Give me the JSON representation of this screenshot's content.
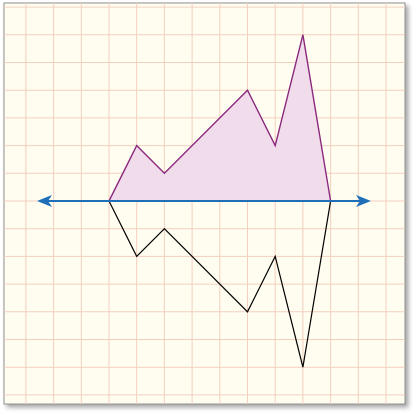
{
  "colors": {
    "paper": "#fffdf0",
    "grid": "#f3cfbf",
    "paper_border": "#8f8f8f",
    "shape_fill": "#f0dcea",
    "shape_stroke": "#8b2a7e",
    "reflection_stroke": "#000000",
    "axis_line": "#1f6fb8"
  },
  "diagram": {
    "description_type": "reflection across a horizontal line on grid paper",
    "grid_cell_units": 1,
    "original_shape_vertices": [
      [
        0,
        0
      ],
      [
        1,
        2
      ],
      [
        2,
        1
      ],
      [
        5,
        4
      ],
      [
        6,
        2
      ],
      [
        7,
        6
      ],
      [
        8,
        0
      ]
    ],
    "reflected_shape_vertices": [
      [
        0,
        0
      ],
      [
        1,
        -2
      ],
      [
        2,
        -1
      ],
      [
        5,
        -4
      ],
      [
        6,
        -2
      ],
      [
        7,
        -6
      ],
      [
        8,
        0
      ]
    ],
    "line_of_reflection": {
      "y": 0,
      "arrows": "both-ends"
    }
  }
}
